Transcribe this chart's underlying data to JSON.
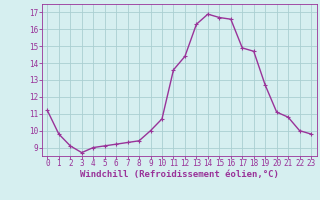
{
  "x": [
    0,
    1,
    2,
    3,
    4,
    5,
    6,
    7,
    8,
    9,
    10,
    11,
    12,
    13,
    14,
    15,
    16,
    17,
    18,
    19,
    20,
    21,
    22,
    23
  ],
  "y": [
    11.2,
    9.8,
    9.1,
    8.7,
    9.0,
    9.1,
    9.2,
    9.3,
    9.4,
    10.0,
    10.7,
    13.6,
    14.4,
    16.3,
    16.9,
    16.7,
    16.6,
    14.9,
    14.7,
    12.7,
    11.1,
    10.8,
    10.0,
    9.8
  ],
  "line_color": "#993399",
  "marker": "P",
  "marker_size": 2.5,
  "bg_color": "#d6eff0",
  "grid_color": "#aacfd2",
  "xlabel": "Windchill (Refroidissement éolien,°C)",
  "xlabel_color": "#993399",
  "tick_color": "#993399",
  "ylim": [
    8.5,
    17.5
  ],
  "xlim": [
    -0.5,
    23.5
  ],
  "yticks": [
    9,
    10,
    11,
    12,
    13,
    14,
    15,
    16,
    17
  ],
  "xticks": [
    0,
    1,
    2,
    3,
    4,
    5,
    6,
    7,
    8,
    9,
    10,
    11,
    12,
    13,
    14,
    15,
    16,
    17,
    18,
    19,
    20,
    21,
    22,
    23
  ],
  "line_width": 1.0,
  "tick_fontsize": 5.5,
  "xlabel_fontsize": 6.5
}
